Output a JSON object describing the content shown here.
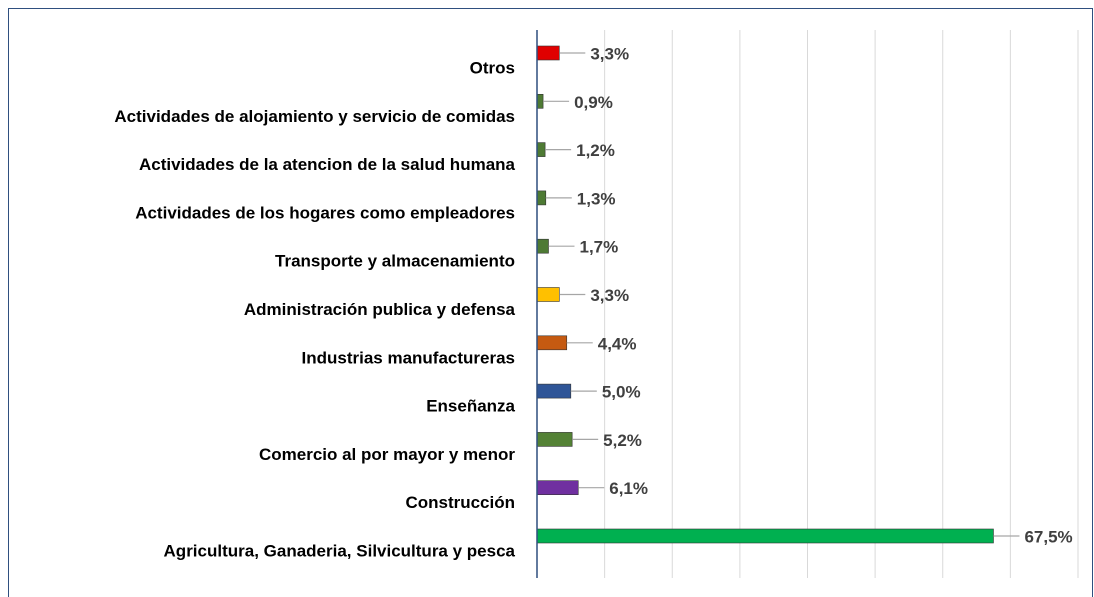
{
  "chart_data": {
    "type": "bar",
    "orientation": "horizontal",
    "categories": [
      "Otros",
      "Actividades de alojamiento y servicio de comidas",
      "Actividades de la atencion de la salud humana",
      "Actividades de los hogares como empleadores",
      "Transporte y almacenamiento",
      "Administración publica y defensa",
      "Industrias manufactureras",
      "Enseñanza",
      "Comercio al por mayor y menor",
      "Construcción",
      "Agricultura, Ganaderia, Silvicultura y pesca"
    ],
    "values": [
      3.3,
      0.9,
      1.2,
      1.3,
      1.7,
      3.3,
      4.4,
      5.0,
      5.2,
      6.1,
      67.5
    ],
    "value_labels": [
      "3,3%",
      "0,9%",
      "1,2%",
      "1,3%",
      "1,7%",
      "3,3%",
      "4,4%",
      "5,0%",
      "5,2%",
      "6,1%",
      "67,5%"
    ],
    "colors": [
      "#e00000",
      "#4e7a34",
      "#4e7a34",
      "#4e7a34",
      "#4e7a34",
      "#ffc000",
      "#c55a11",
      "#2f5597",
      "#548235",
      "#7030a0",
      "#00b050"
    ],
    "xlim": [
      0,
      80
    ],
    "xticks": [
      0,
      10,
      20,
      30,
      40,
      50,
      60,
      70,
      80
    ],
    "grid": true
  }
}
